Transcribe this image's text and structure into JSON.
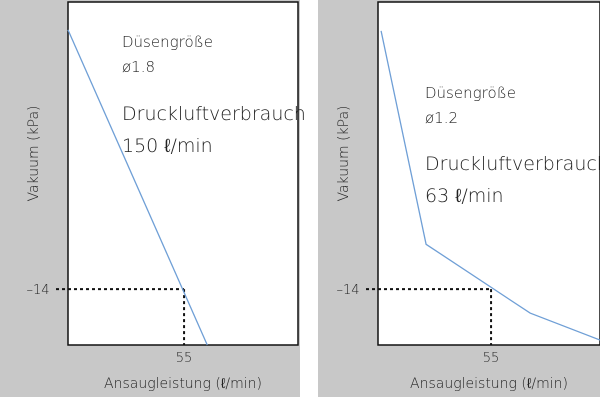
{
  "chart_data": [
    {
      "type": "line",
      "x": [
        0,
        66
      ],
      "values": [
        -79,
        0
      ],
      "color": "#6f9fd6",
      "xlim": [
        0,
        109
      ],
      "ylim": [
        0,
        -86
      ],
      "xticks": [
        55
      ],
      "yticks": [
        {
          "value": -14,
          "label": "–14"
        }
      ],
      "xlabel": "Ansaugleistung (ℓ/min)",
      "ylabel": "Vakuum (kPa)",
      "annotations": [
        "Düsengröße",
        "ø1.8",
        "Druckluftverbrauch",
        "150 ℓ/min"
      ]
    },
    {
      "type": "line",
      "x": [
        1.5,
        23.4,
        74,
        108
      ],
      "values": [
        -78.75,
        -25.25,
        -8,
        -1.25
      ],
      "color": "#6f9fd6",
      "xlim": [
        0,
        108
      ],
      "ylim": [
        0,
        -86
      ],
      "xticks": [
        55
      ],
      "yticks": [
        {
          "value": -14,
          "label": "–14"
        }
      ],
      "xlabel": "Ansaugleistung (ℓ/min)",
      "ylabel": "Vakuum (kPa)",
      "annotations": [
        "Düsengröße",
        "ø1.2",
        "Druckluftverbrauch",
        "63 ℓ/min"
      ]
    }
  ]
}
